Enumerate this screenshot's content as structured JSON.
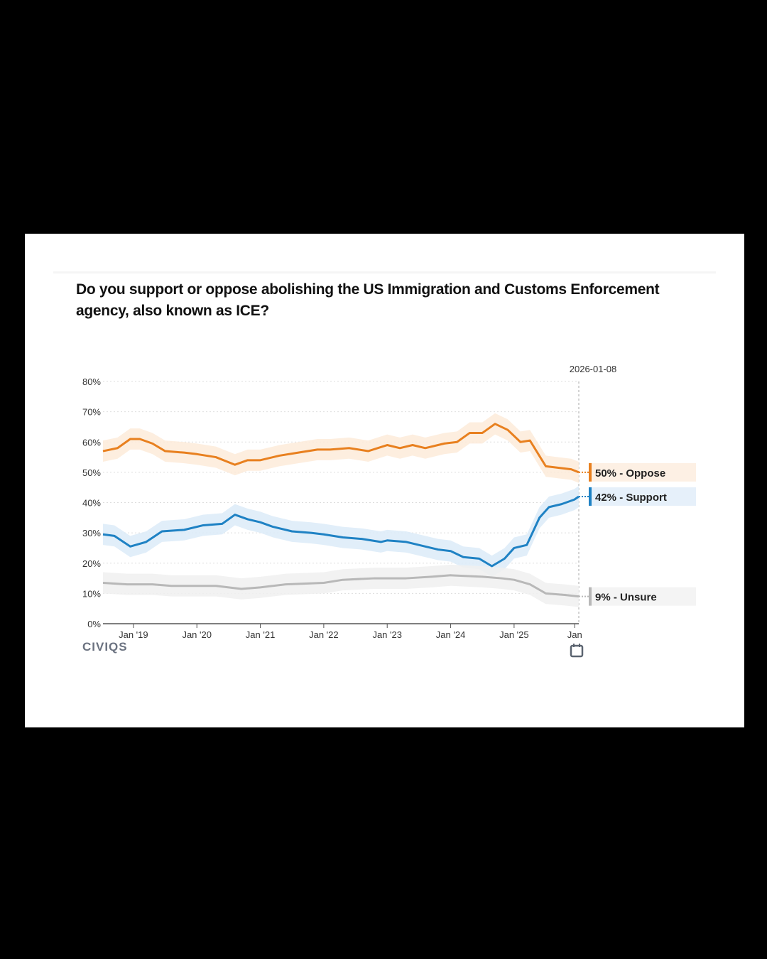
{
  "title": "Do you support or oppose abolishing the US Immigration and Customs Enforcement agency, also known as ICE?",
  "brand": "CIVIQS",
  "chart_data": {
    "type": "line",
    "title": "Do you support or oppose abolishing the US Immigration and Customs Enforcement agency, also known as ICE?",
    "xlabel": "",
    "ylabel": "",
    "x_units": "decimal year",
    "xlim": [
      2018.52,
      2026.02
    ],
    "ylim": [
      0,
      80
    ],
    "yticks": [
      0,
      10,
      20,
      30,
      40,
      50,
      60,
      70,
      80
    ],
    "ytick_labels": [
      "0%",
      "10%",
      "20%",
      "30%",
      "40%",
      "50%",
      "60%",
      "70%",
      "80%"
    ],
    "xticks": [
      2019,
      2020,
      2021,
      2022,
      2023,
      2024,
      2025,
      2026
    ],
    "xtick_labels": [
      "Jan '19",
      "Jan '20",
      "Jan '21",
      "Jan '22",
      "Jan '23",
      "Jan '24",
      "Jan '25",
      "Jan"
    ],
    "current_date": "2026-01-08",
    "grid": true,
    "legend_placement": "right",
    "band_halfwidth": 3.5,
    "series": [
      {
        "name": "Oppose",
        "label": "50% - Oppose",
        "color": "#e8801f",
        "band": "#fdebd9",
        "legend_bg": "#fdf0e4",
        "x": [
          2018.52,
          2018.75,
          2018.95,
          2019.1,
          2019.3,
          2019.5,
          2019.8,
          2020.0,
          2020.3,
          2020.6,
          2020.8,
          2021.0,
          2021.3,
          2021.6,
          2021.9,
          2022.1,
          2022.4,
          2022.7,
          2023.0,
          2023.2,
          2023.4,
          2023.6,
          2023.9,
          2024.1,
          2024.3,
          2024.5,
          2024.7,
          2024.9,
          2025.1,
          2025.25,
          2025.5,
          2025.7,
          2025.9,
          2026.02
        ],
        "y": [
          57,
          58,
          61,
          61,
          59.5,
          57,
          56.5,
          56,
          55,
          52.5,
          54,
          54,
          55.5,
          56.5,
          57.5,
          57.5,
          58,
          57,
          59,
          58,
          59,
          58,
          59.5,
          60,
          63,
          63,
          66,
          64,
          60,
          60.5,
          52,
          51.5,
          51,
          50
        ]
      },
      {
        "name": "Support",
        "label": "42% - Support",
        "color": "#1f82c4",
        "band": "#dcebf8",
        "legend_bg": "#e6f0fa",
        "x": [
          2018.52,
          2018.7,
          2018.95,
          2019.2,
          2019.45,
          2019.8,
          2020.1,
          2020.4,
          2020.6,
          2020.8,
          2021.0,
          2021.2,
          2021.5,
          2021.8,
          2022.0,
          2022.3,
          2022.6,
          2022.9,
          2023.0,
          2023.3,
          2023.5,
          2023.8,
          2024.0,
          2024.2,
          2024.45,
          2024.65,
          2024.85,
          2025.0,
          2025.2,
          2025.4,
          2025.55,
          2025.75,
          2025.95,
          2026.02
        ],
        "y": [
          29.5,
          29,
          25.5,
          27,
          30.5,
          31,
          32.5,
          33,
          36,
          34.5,
          33.5,
          32,
          30.5,
          30,
          29.5,
          28.5,
          28,
          27,
          27.5,
          27,
          26,
          24.5,
          24,
          22,
          21.5,
          19,
          21.5,
          25,
          26,
          35,
          38.5,
          39.5,
          41,
          42
        ]
      },
      {
        "name": "Unsure",
        "label": "9% - Unsure",
        "color": "#b8b8b8",
        "band": "#f0f0f0",
        "legend_bg": "#f4f4f4",
        "x": [
          2018.52,
          2018.9,
          2019.3,
          2019.6,
          2020.3,
          2020.7,
          2021.0,
          2021.4,
          2022.0,
          2022.3,
          2022.8,
          2023.3,
          2023.7,
          2024.0,
          2024.5,
          2024.8,
          2025.0,
          2025.25,
          2025.5,
          2025.8,
          2026.02
        ],
        "y": [
          13.5,
          13,
          13,
          12.5,
          12.5,
          11.5,
          12,
          13,
          13.5,
          14.5,
          15,
          15,
          15.5,
          16,
          15.5,
          15,
          14.5,
          13,
          10,
          9.5,
          9
        ]
      }
    ]
  }
}
